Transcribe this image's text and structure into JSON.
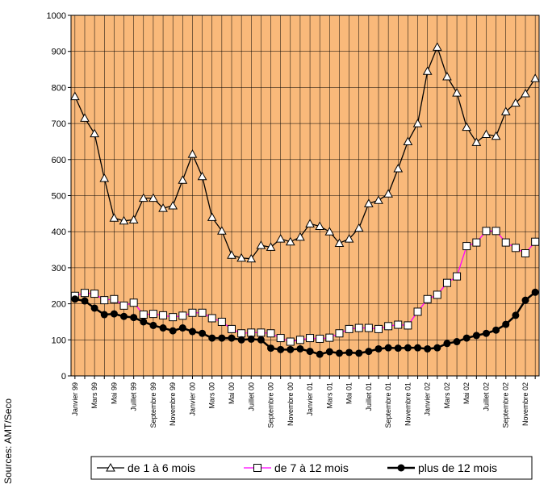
{
  "chart_data": {
    "type": "line",
    "source": "Sources: AMT/Seco",
    "categories": [
      "Janvier 99",
      null,
      "Mars 99",
      null,
      "Mai 99",
      null,
      "Juillet 99",
      null,
      "Septembre 99",
      null,
      "Novembre 99",
      null,
      "Janvier 00",
      null,
      "Mars 00",
      null,
      "Mai 00",
      null,
      "Juillet 00",
      null,
      "Septembre 00",
      null,
      "Novembre 00",
      null,
      "Janvier 01",
      null,
      "Mars 01",
      null,
      "Mai 01",
      null,
      "Juillet 01",
      null,
      "Septembre 01",
      null,
      "Novembre 01",
      null,
      "Janvier 02",
      null,
      "Mars 02",
      null,
      "Mai 02",
      null,
      "Juillet 02",
      null,
      "Septembre 02",
      null,
      "Novembre 02",
      null
    ],
    "series": [
      {
        "name": "de 1 à 6 mois",
        "color": "#000000",
        "marker": "triangle",
        "values": [
          775,
          715,
          672,
          548,
          438,
          430,
          433,
          493,
          493,
          465,
          472,
          543,
          615,
          553,
          440,
          402,
          335,
          327,
          325,
          362,
          357,
          380,
          372,
          385,
          422,
          415,
          400,
          368,
          380,
          410,
          478,
          487,
          505,
          575,
          650,
          700,
          845,
          912,
          830,
          785,
          690,
          648,
          670,
          665,
          733,
          757,
          783,
          825
        ]
      },
      {
        "name": "de 7 à 12 mois",
        "color": "#ff00ff",
        "marker": "square",
        "values": [
          222,
          230,
          228,
          210,
          213,
          195,
          203,
          170,
          172,
          168,
          163,
          167,
          175,
          175,
          160,
          150,
          130,
          118,
          120,
          120,
          118,
          105,
          95,
          100,
          105,
          103,
          106,
          118,
          130,
          133,
          133,
          130,
          138,
          142,
          140,
          178,
          213,
          225,
          258,
          276,
          360,
          370,
          402,
          402,
          370,
          355,
          340,
          372
        ]
      },
      {
        "name": "plus de 12 mois",
        "color": "#000000",
        "marker": "circle",
        "values": [
          213,
          208,
          188,
          170,
          172,
          165,
          162,
          150,
          140,
          133,
          125,
          133,
          123,
          118,
          105,
          105,
          105,
          100,
          102,
          100,
          77,
          73,
          73,
          75,
          68,
          60,
          67,
          63,
          65,
          63,
          68,
          75,
          78,
          77,
          78,
          78,
          75,
          78,
          90,
          95,
          105,
          112,
          118,
          127,
          143,
          168,
          210,
          232
        ]
      }
    ],
    "ylim": [
      0,
      1000
    ],
    "yticks": [
      0,
      100,
      200,
      300,
      400,
      500,
      600,
      700,
      800,
      900,
      1000
    ],
    "grid": true,
    "background": "#f9b97a"
  }
}
